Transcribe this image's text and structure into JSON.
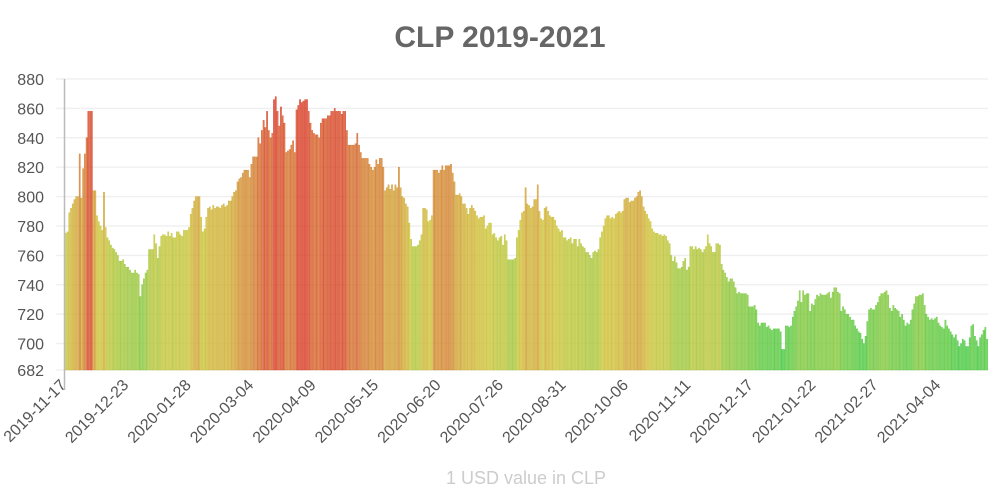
{
  "chart_data": {
    "type": "bar",
    "title": "CLP 2019-2021",
    "xlabel": "1 USD value in CLP",
    "ylabel": "",
    "ylim": [
      682,
      880
    ],
    "yticks": [
      682,
      700,
      720,
      740,
      760,
      780,
      800,
      820,
      840,
      860,
      880
    ],
    "xtick_labels": [
      "2019-11-17",
      "2019-12-23",
      "2020-01-28",
      "2020-03-04",
      "2020-04-09",
      "2020-05-15",
      "2020-06-20",
      "2020-07-26",
      "2020-08-31",
      "2020-10-06",
      "2020-11-11",
      "2020-12-17",
      "2021-01-22",
      "2021-02-27",
      "2021-04-04"
    ],
    "xtick_interval_days": 36,
    "grid": true,
    "color_scale": {
      "low": "#3cc83c",
      "mid": "#cdc332",
      "high": "#d7321e"
    },
    "values": [
      775,
      776,
      789,
      792,
      795,
      798,
      800,
      800,
      829,
      799,
      819,
      829,
      840,
      858,
      858,
      858,
      804,
      804,
      787,
      783,
      780,
      777,
      803,
      779,
      772,
      770,
      767,
      765,
      764,
      762,
      760,
      756,
      756,
      757,
      754,
      752,
      752,
      750,
      748,
      748,
      750,
      748,
      747,
      732,
      740,
      744,
      748,
      750,
      764,
      764,
      764,
      774,
      768,
      758,
      766,
      773,
      774,
      774,
      773,
      776,
      773,
      775,
      772,
      772,
      776,
      776,
      774,
      773,
      777,
      777,
      777,
      779,
      788,
      792,
      797,
      800,
      800,
      800,
      786,
      776,
      778,
      786,
      792,
      793,
      791,
      794,
      792,
      793,
      793,
      792,
      794,
      795,
      793,
      794,
      797,
      797,
      800,
      803,
      804,
      810,
      812,
      813,
      816,
      818,
      818,
      818,
      813,
      822,
      827,
      827,
      827,
      840,
      836,
      845,
      852,
      847,
      858,
      845,
      840,
      843,
      866,
      868,
      858,
      848,
      861,
      855,
      850,
      830,
      831,
      832,
      835,
      838,
      830,
      859,
      862,
      866,
      864,
      865,
      866,
      866,
      858,
      850,
      845,
      843,
      842,
      842,
      840,
      850,
      853,
      853,
      853,
      855,
      855,
      858,
      858,
      860,
      858,
      858,
      858,
      856,
      858,
      858,
      845,
      835,
      835,
      835,
      835,
      836,
      843,
      835,
      830,
      826,
      826,
      826,
      826,
      822,
      820,
      818,
      820,
      825,
      822,
      826,
      826,
      820,
      804,
      806,
      808,
      805,
      808,
      804,
      808,
      806,
      820,
      806,
      800,
      799,
      795,
      793,
      782,
      771,
      766,
      766,
      766,
      767,
      770,
      774,
      792,
      792,
      791,
      783,
      784,
      787,
      818,
      818,
      818,
      816,
      818,
      821,
      818,
      821,
      821,
      821,
      822,
      816,
      810,
      801,
      801,
      802,
      800,
      795,
      795,
      792,
      788,
      792,
      794,
      792,
      790,
      787,
      785,
      786,
      786,
      787,
      778,
      780,
      782,
      782,
      774,
      775,
      772,
      770,
      772,
      773,
      767,
      774,
      770,
      757,
      757,
      757,
      757,
      758,
      772,
      777,
      784,
      789,
      790,
      806,
      795,
      794,
      792,
      793,
      798,
      798,
      808,
      790,
      785,
      784,
      792,
      793,
      790,
      787,
      786,
      786,
      784,
      780,
      778,
      776,
      777,
      772,
      772,
      770,
      771,
      772,
      768,
      771,
      771,
      766,
      771,
      768,
      766,
      765,
      762,
      762,
      760,
      758,
      762,
      763,
      762,
      764,
      772,
      776,
      780,
      785,
      787,
      787,
      785,
      786,
      785,
      788,
      789,
      790,
      789,
      790,
      798,
      799,
      799,
      796,
      797,
      797,
      799,
      800,
      803,
      804,
      800,
      793,
      790,
      788,
      785,
      783,
      778,
      776,
      775,
      775,
      774,
      774,
      773,
      774,
      773,
      770,
      768,
      760,
      756,
      759,
      755,
      751,
      751,
      752,
      756,
      758,
      750,
      752,
      766,
      766,
      764,
      766,
      764,
      765,
      764,
      762,
      764,
      766,
      774,
      768,
      766,
      762,
      762,
      768,
      768,
      767,
      754,
      750,
      748,
      745,
      742,
      744,
      744,
      742,
      738,
      734,
      735,
      734,
      734,
      734,
      734,
      733,
      725,
      725,
      725,
      726,
      723,
      714,
      712,
      714,
      714,
      714,
      711,
      712,
      710,
      709,
      710,
      710,
      710,
      710,
      708,
      696,
      696,
      712,
      712,
      711,
      712,
      718,
      722,
      725,
      729,
      736,
      728,
      736,
      733,
      734,
      734,
      722,
      727,
      726,
      730,
      733,
      732,
      734,
      733,
      733,
      733,
      734,
      735,
      731,
      735,
      738,
      738,
      735,
      734,
      722,
      725,
      723,
      720,
      720,
      718,
      716,
      716,
      712,
      710,
      708,
      707,
      703,
      700,
      705,
      715,
      723,
      724,
      723,
      723,
      726,
      728,
      732,
      734,
      734,
      735,
      736,
      733,
      724,
      722,
      726,
      724,
      723,
      722,
      718,
      720,
      716,
      712,
      714,
      713,
      716,
      723,
      727,
      732,
      732,
      733,
      733,
      734,
      726,
      720,
      718,
      716,
      717,
      716,
      717,
      718,
      714,
      712,
      711,
      710,
      716,
      712,
      710,
      708,
      706,
      704,
      706,
      702,
      698,
      700,
      703,
      702,
      698,
      698,
      704,
      712,
      713,
      705,
      702,
      698,
      704,
      706,
      709,
      711,
      703
    ]
  }
}
